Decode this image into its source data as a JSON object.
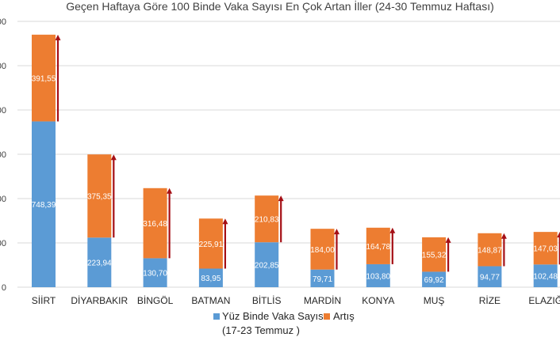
{
  "chart_data": {
    "type": "bar",
    "stacked": true,
    "title": "Geçen Haftaya Göre 100 Binde Vaka Sayısı En Çok Artan İller (24-30 Temmuz Haftası)",
    "categories": [
      "SİİRT",
      "DİYARBAKIR",
      "BİNGÖL",
      "BATMAN",
      "BİTLİS",
      "MARDİN",
      "KONYA",
      "MUŞ",
      "RİZE",
      "ELAZIĞ"
    ],
    "series": [
      {
        "name": "Yüz Binde Vaka Sayısı (17-23 Temmuz )",
        "color": "#5b9bd5",
        "values": [
          748.39,
          223.94,
          130.7,
          83.95,
          202.85,
          79.71,
          103.8,
          69.92,
          94.77,
          102.48
        ],
        "labels": [
          "748,39",
          "223,94",
          "130,70",
          "83,95",
          "202,85",
          "79,71",
          "103,80",
          "69,92",
          "94,77",
          "102,48"
        ]
      },
      {
        "name": "Artış",
        "color": "#ed7d31",
        "values": [
          391.55,
          375.35,
          316.48,
          225.91,
          210.83,
          184.0,
          164.78,
          155.32,
          148.87,
          147.03
        ],
        "labels": [
          "391,55",
          "375,35",
          "316,48",
          "225,91",
          "210,83",
          "184,00",
          "164,78",
          "155,32",
          "148,87",
          "147,03"
        ]
      }
    ],
    "ylim": [
      0,
      1200
    ],
    "yticks": [
      "0",
      "200",
      "400",
      "600",
      "800",
      "1000",
      "1200"
    ],
    "legend": "bottom",
    "arrow_color": "#a50f15",
    "grid": true
  }
}
